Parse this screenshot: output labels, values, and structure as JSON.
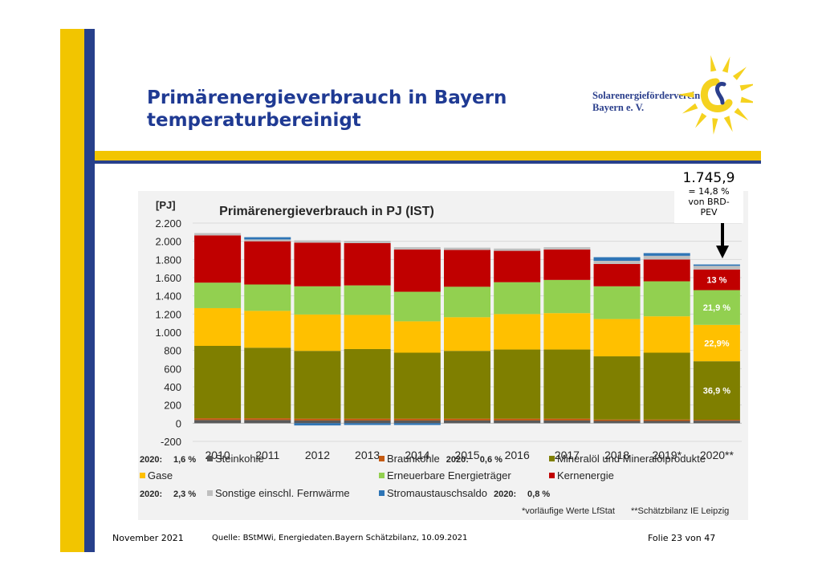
{
  "slide": {
    "title_line1": "Primärenergieverbrauch in Bayern",
    "title_line2": "temperaturbereinigt",
    "logo_line1": "Solarenergieförderverein",
    "logo_line2": "Bayern e. V.",
    "footer_date": "November 2021",
    "footer_source": "Quelle: BStMWi, Energiedaten.Bayern Schätzbilanz, 10.09.2021",
    "footer_page": "Folie 23 von 47",
    "callout": {
      "value": "1.745,9",
      "line1": "= 14,8 %",
      "line2": "von BRD-",
      "line3": "PEV"
    },
    "colors": {
      "yellow_stripe": "#f2c500",
      "blue_stripe": "#27408b",
      "title_blue": "#1f3a93",
      "logo_text": "#2b3f8c",
      "sun_yellow": "#f5d21f",
      "sun_blue": "#2b3f8c"
    }
  },
  "chart_data": {
    "type": "bar",
    "stacked": true,
    "title": "Primärenergieverbrauch in PJ (IST)",
    "ylabel": "[PJ]",
    "ylim": [
      -200,
      2200
    ],
    "yticks": [
      -200,
      0,
      200,
      400,
      600,
      800,
      1000,
      1200,
      1400,
      1600,
      1800,
      2000,
      2200
    ],
    "ytick_labels": [
      "-200",
      "0",
      "200",
      "400",
      "600",
      "800",
      "1.000",
      "1.200",
      "1.400",
      "1.600",
      "1.800",
      "2.000",
      "2.200"
    ],
    "grid": true,
    "categories": [
      "2010",
      "2011",
      "2012",
      "2013",
      "2014",
      "2015",
      "2016",
      "2017",
      "2018",
      "2019*",
      "2020**"
    ],
    "series": [
      {
        "name": "Steinkohle",
        "color": "#595959",
        "values": [
          35,
          35,
          30,
          30,
          30,
          30,
          30,
          30,
          25,
          25,
          28
        ]
      },
      {
        "name": "Braunkohle",
        "color": "#c55a11",
        "values": [
          20,
          20,
          20,
          20,
          20,
          20,
          20,
          20,
          15,
          15,
          10
        ]
      },
      {
        "name": "Mineralöl und Mineralölprodukte",
        "color": "#7f7f00",
        "values": [
          795,
          775,
          745,
          765,
          725,
          745,
          760,
          760,
          695,
          735,
          643
        ]
      },
      {
        "name": "Gase",
        "color": "#ffc000",
        "values": [
          415,
          405,
          400,
          375,
          345,
          370,
          390,
          400,
          410,
          400,
          400
        ]
      },
      {
        "name": "Erneuerbare Energieträger",
        "color": "#92d050",
        "values": [
          280,
          290,
          310,
          325,
          325,
          335,
          350,
          365,
          360,
          385,
          382
        ]
      },
      {
        "name": "Kernenergie",
        "color": "#c00000",
        "values": [
          520,
          475,
          480,
          465,
          465,
          405,
          345,
          335,
          245,
          240,
          227
        ]
      },
      {
        "name": "Sonstige einschl. Fernwärme",
        "color": "#bfbfbf",
        "values": [
          25,
          20,
          25,
          25,
          25,
          25,
          25,
          25,
          35,
          40,
          40
        ]
      },
      {
        "name": "Stromaustauschsaldo",
        "color": "#2e75b6",
        "values": [
          0,
          25,
          -25,
          -20,
          -20,
          0,
          0,
          0,
          40,
          30,
          15
        ]
      }
    ],
    "segment_labels": [
      {
        "series": "Kernenergie",
        "category": "2020**",
        "text": "13 %"
      },
      {
        "series": "Erneuerbare Energieträger",
        "category": "2020**",
        "text": "21,9 %"
      },
      {
        "series": "Gase",
        "category": "2020**",
        "text": "22,9%"
      },
      {
        "series": "Mineralöl und Mineralölprodukte",
        "category": "2020**",
        "text": "36,9 %"
      }
    ],
    "legend_rows": [
      [
        {
          "prefix": "2020:",
          "pct": "1,6 %",
          "series": "Steinkohle"
        },
        {
          "series": "Braunkohle",
          "suffix": "2020:",
          "pct": "0,6 %"
        },
        {
          "series": "Mineralöl und Mineralölprodukte"
        }
      ],
      [
        {
          "series": "Gase"
        },
        {
          "series": "Erneuerbare Energieträger"
        },
        {
          "series": "Kernenergie"
        }
      ],
      [
        {
          "prefix": "2020:",
          "pct": "2,3 %",
          "series": "Sonstige einschl. Fernwärme"
        },
        {
          "series": "Stromaustauschsaldo",
          "suffix": "2020:",
          "pct": "0,8 %"
        }
      ]
    ],
    "notes": [
      "*vorläufige Werte LfStat",
      "**Schätzbilanz IE Leipzig"
    ],
    "legend_placement": "bottom"
  }
}
